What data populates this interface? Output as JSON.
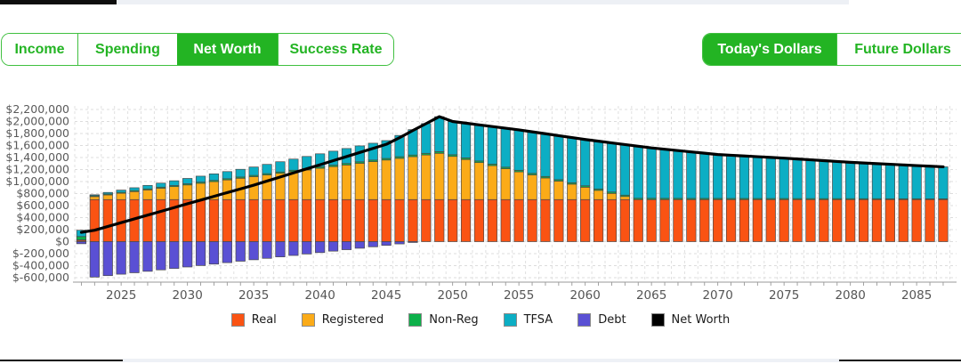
{
  "theme": {
    "accent_green": "#23b423",
    "green_border": "#40c040",
    "active_text": "#ffffff",
    "axis_text": "#5a5a5a",
    "gridline": "#dcdcdc"
  },
  "tabs": {
    "left": [
      {
        "label": "Income",
        "active": false
      },
      {
        "label": "Spending",
        "active": false
      },
      {
        "label": "Net Worth",
        "active": true
      },
      {
        "label": "Success Rate",
        "active": false
      }
    ],
    "right": [
      {
        "label": "Today's Dollars",
        "active": true
      },
      {
        "label": "Future Dollars",
        "active": false
      }
    ]
  },
  "chart_data": {
    "type": "bar",
    "subtype": "stacked-bars-with-line",
    "title": "",
    "xlabel": "",
    "ylabel": "",
    "grid": "dashed",
    "legend_position": "bottom",
    "ylim": [
      -600000,
      2200000
    ],
    "y_ticks": [
      2200000,
      2000000,
      1800000,
      1600000,
      1400000,
      1200000,
      1000000,
      800000,
      600000,
      400000,
      200000,
      0,
      -200000,
      -400000,
      -600000
    ],
    "y_tick_labels": [
      "$2,200,000",
      "$2,000,000",
      "$1,800,000",
      "$1,600,000",
      "$1,400,000",
      "$1,200,000",
      "$1,000,000",
      "$800,000",
      "$600,000",
      "$400,000",
      "$200,000",
      "$0",
      "$-200,000",
      "$-400,000",
      "$-600,000"
    ],
    "x_tick_labels": [
      "2025",
      "2030",
      "2035",
      "2040",
      "2045",
      "2050",
      "2055",
      "2060",
      "2065",
      "2070",
      "2075",
      "2080",
      "2085"
    ],
    "years": [
      2022,
      2023,
      2024,
      2025,
      2026,
      2027,
      2028,
      2029,
      2030,
      2031,
      2032,
      2033,
      2034,
      2035,
      2036,
      2037,
      2038,
      2039,
      2040,
      2041,
      2042,
      2043,
      2044,
      2045,
      2046,
      2047,
      2048,
      2049,
      2050,
      2051,
      2052,
      2053,
      2054,
      2055,
      2056,
      2057,
      2058,
      2059,
      2060,
      2061,
      2062,
      2063,
      2064,
      2065,
      2066,
      2067,
      2068,
      2069,
      2070,
      2071,
      2072,
      2073,
      2074,
      2075,
      2076,
      2077,
      2078,
      2079,
      2080,
      2081,
      2082,
      2083,
      2084,
      2085,
      2086,
      2087
    ],
    "series": [
      {
        "name": "Real",
        "color": "#fa5313",
        "values": [
          20000,
          700000,
          700000,
          700000,
          700000,
          700000,
          700000,
          700000,
          700000,
          700000,
          700000,
          700000,
          700000,
          700000,
          700000,
          700000,
          700000,
          700000,
          700000,
          700000,
          700000,
          700000,
          700000,
          700000,
          700000,
          700000,
          700000,
          700000,
          700000,
          700000,
          700000,
          700000,
          700000,
          700000,
          700000,
          700000,
          700000,
          700000,
          700000,
          700000,
          700000,
          700000,
          700000,
          700000,
          700000,
          700000,
          700000,
          700000,
          700000,
          700000,
          700000,
          700000,
          700000,
          700000,
          700000,
          700000,
          700000,
          700000,
          700000,
          700000,
          700000,
          700000,
          700000,
          700000,
          700000,
          700000
        ]
      },
      {
        "name": "Registered",
        "color": "#fbab18",
        "values": [
          10000,
          50000,
          78000,
          105000,
          133000,
          161000,
          189000,
          216000,
          244000,
          272000,
          299000,
          327000,
          355000,
          382000,
          410000,
          438000,
          466000,
          493000,
          521000,
          549000,
          576000,
          604000,
          632000,
          659000,
          687000,
          715000,
          742000,
          770000,
          719000,
          667000,
          616000,
          565000,
          514000,
          462000,
          411000,
          360000,
          308000,
          257000,
          206000,
          154000,
          103000,
          52000,
          0,
          0,
          0,
          0,
          0,
          0,
          0,
          0,
          0,
          0,
          0,
          0,
          0,
          0,
          0,
          0,
          0,
          0,
          0,
          0,
          0,
          0,
          0,
          0
        ]
      },
      {
        "name": "Non-Reg",
        "color": "#0db04a",
        "values": [
          55000,
          15000,
          16000,
          16000,
          17000,
          17000,
          18000,
          18000,
          19000,
          19000,
          20000,
          20000,
          21000,
          21000,
          22000,
          22000,
          23000,
          23000,
          24000,
          24000,
          25000,
          25000,
          26000,
          26000,
          27000,
          27000,
          28000,
          28000,
          28000,
          27000,
          27000,
          26000,
          26000,
          26000,
          25000,
          25000,
          24000,
          24000,
          24000,
          23000,
          23000,
          22000,
          22000,
          22000,
          21000,
          21000,
          20000,
          20000,
          20000,
          19000,
          19000,
          18000,
          18000,
          18000,
          17000,
          17000,
          16000,
          16000,
          16000,
          15000,
          15000,
          14000,
          14000,
          14000,
          13000,
          13000
        ]
      },
      {
        "name": "TFSA",
        "color": "#0caec4",
        "values": [
          105000,
          15000,
          25000,
          37000,
          47000,
          58000,
          67000,
          79000,
          89000,
          99000,
          109000,
          119000,
          128000,
          139000,
          154000,
          170000,
          185000,
          202000,
          217000,
          233000,
          249000,
          265000,
          280000,
          297000,
          354000,
          422000,
          495000,
          582000,
          553000,
          578000,
          601000,
          625000,
          648000,
          672000,
          692000,
          711000,
          732000,
          751000,
          770000,
          795000,
          818000,
          842000,
          866000,
          838000,
          817000,
          795000,
          774000,
          752000,
          730000,
          719000,
          707000,
          696000,
          684000,
          672000,
          659000,
          645000,
          632000,
          618000,
          604000,
          594000,
          583000,
          574000,
          563000,
          552000,
          543000,
          532000
        ]
      },
      {
        "name": "Debt",
        "color": "#5a50d4",
        "values": [
          -35000,
          -590000,
          -566000,
          -542000,
          -518000,
          -494000,
          -470000,
          -446000,
          -422000,
          -398000,
          -374000,
          -350000,
          -326000,
          -302000,
          -278000,
          -254000,
          -230000,
          -206000,
          -182000,
          -158000,
          -134000,
          -110000,
          -86000,
          -62000,
          -38000,
          -14000,
          0,
          0,
          0,
          0,
          0,
          0,
          0,
          0,
          0,
          0,
          0,
          0,
          0,
          0,
          0,
          0,
          0,
          0,
          0,
          0,
          0,
          0,
          0,
          0,
          0,
          0,
          0,
          0,
          0,
          0,
          0,
          0,
          0,
          0,
          0,
          0,
          0,
          0,
          0,
          0
        ]
      }
    ],
    "line_series": {
      "name": "Net Worth",
      "color": "#000000",
      "values": [
        155000,
        190000,
        253000,
        316000,
        379000,
        442000,
        504000,
        567000,
        630000,
        692000,
        754000,
        816000,
        878000,
        940000,
        1008000,
        1076000,
        1144000,
        1212000,
        1280000,
        1348000,
        1416000,
        1484000,
        1552000,
        1620000,
        1730000,
        1850000,
        1965000,
        2080000,
        2000000,
        1972000,
        1944000,
        1916000,
        1888000,
        1860000,
        1828000,
        1796000,
        1764000,
        1732000,
        1700000,
        1672000,
        1644000,
        1616000,
        1588000,
        1560000,
        1538000,
        1516000,
        1494000,
        1472000,
        1450000,
        1438000,
        1426000,
        1414000,
        1402000,
        1390000,
        1376000,
        1362000,
        1348000,
        1334000,
        1320000,
        1309000,
        1298000,
        1288000,
        1277000,
        1266000,
        1256000,
        1245000
      ]
    }
  }
}
